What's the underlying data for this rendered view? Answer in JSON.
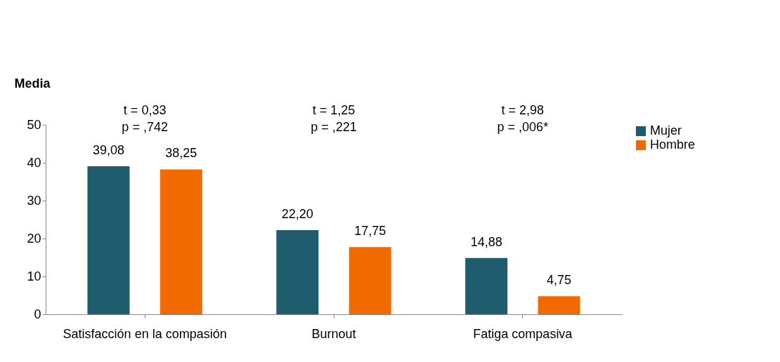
{
  "chart_data": {
    "type": "bar",
    "ylabel": "Media",
    "categories": [
      "Satisfacción en la compasión",
      "Burnout",
      "Fatiga compasiva"
    ],
    "series": [
      {
        "name": "Mujer",
        "color": "#1f5c6e",
        "values": [
          39.08,
          22.2,
          14.88
        ],
        "value_labels": [
          "39,08",
          "22,20",
          "14,88"
        ]
      },
      {
        "name": "Hombre",
        "color": "#f06a00",
        "values": [
          38.25,
          17.75,
          4.75
        ],
        "value_labels": [
          "38,25",
          "17,75",
          "4,75"
        ]
      }
    ],
    "ylim": [
      0,
      50
    ],
    "yticks": [
      0,
      10,
      20,
      30,
      40,
      50
    ],
    "grid": false,
    "legend": "right",
    "annotations": [
      "t = 0,33\np = ,742",
      "t = 1,25\np = ,221",
      "t = 2,98\np = ,006*"
    ]
  }
}
